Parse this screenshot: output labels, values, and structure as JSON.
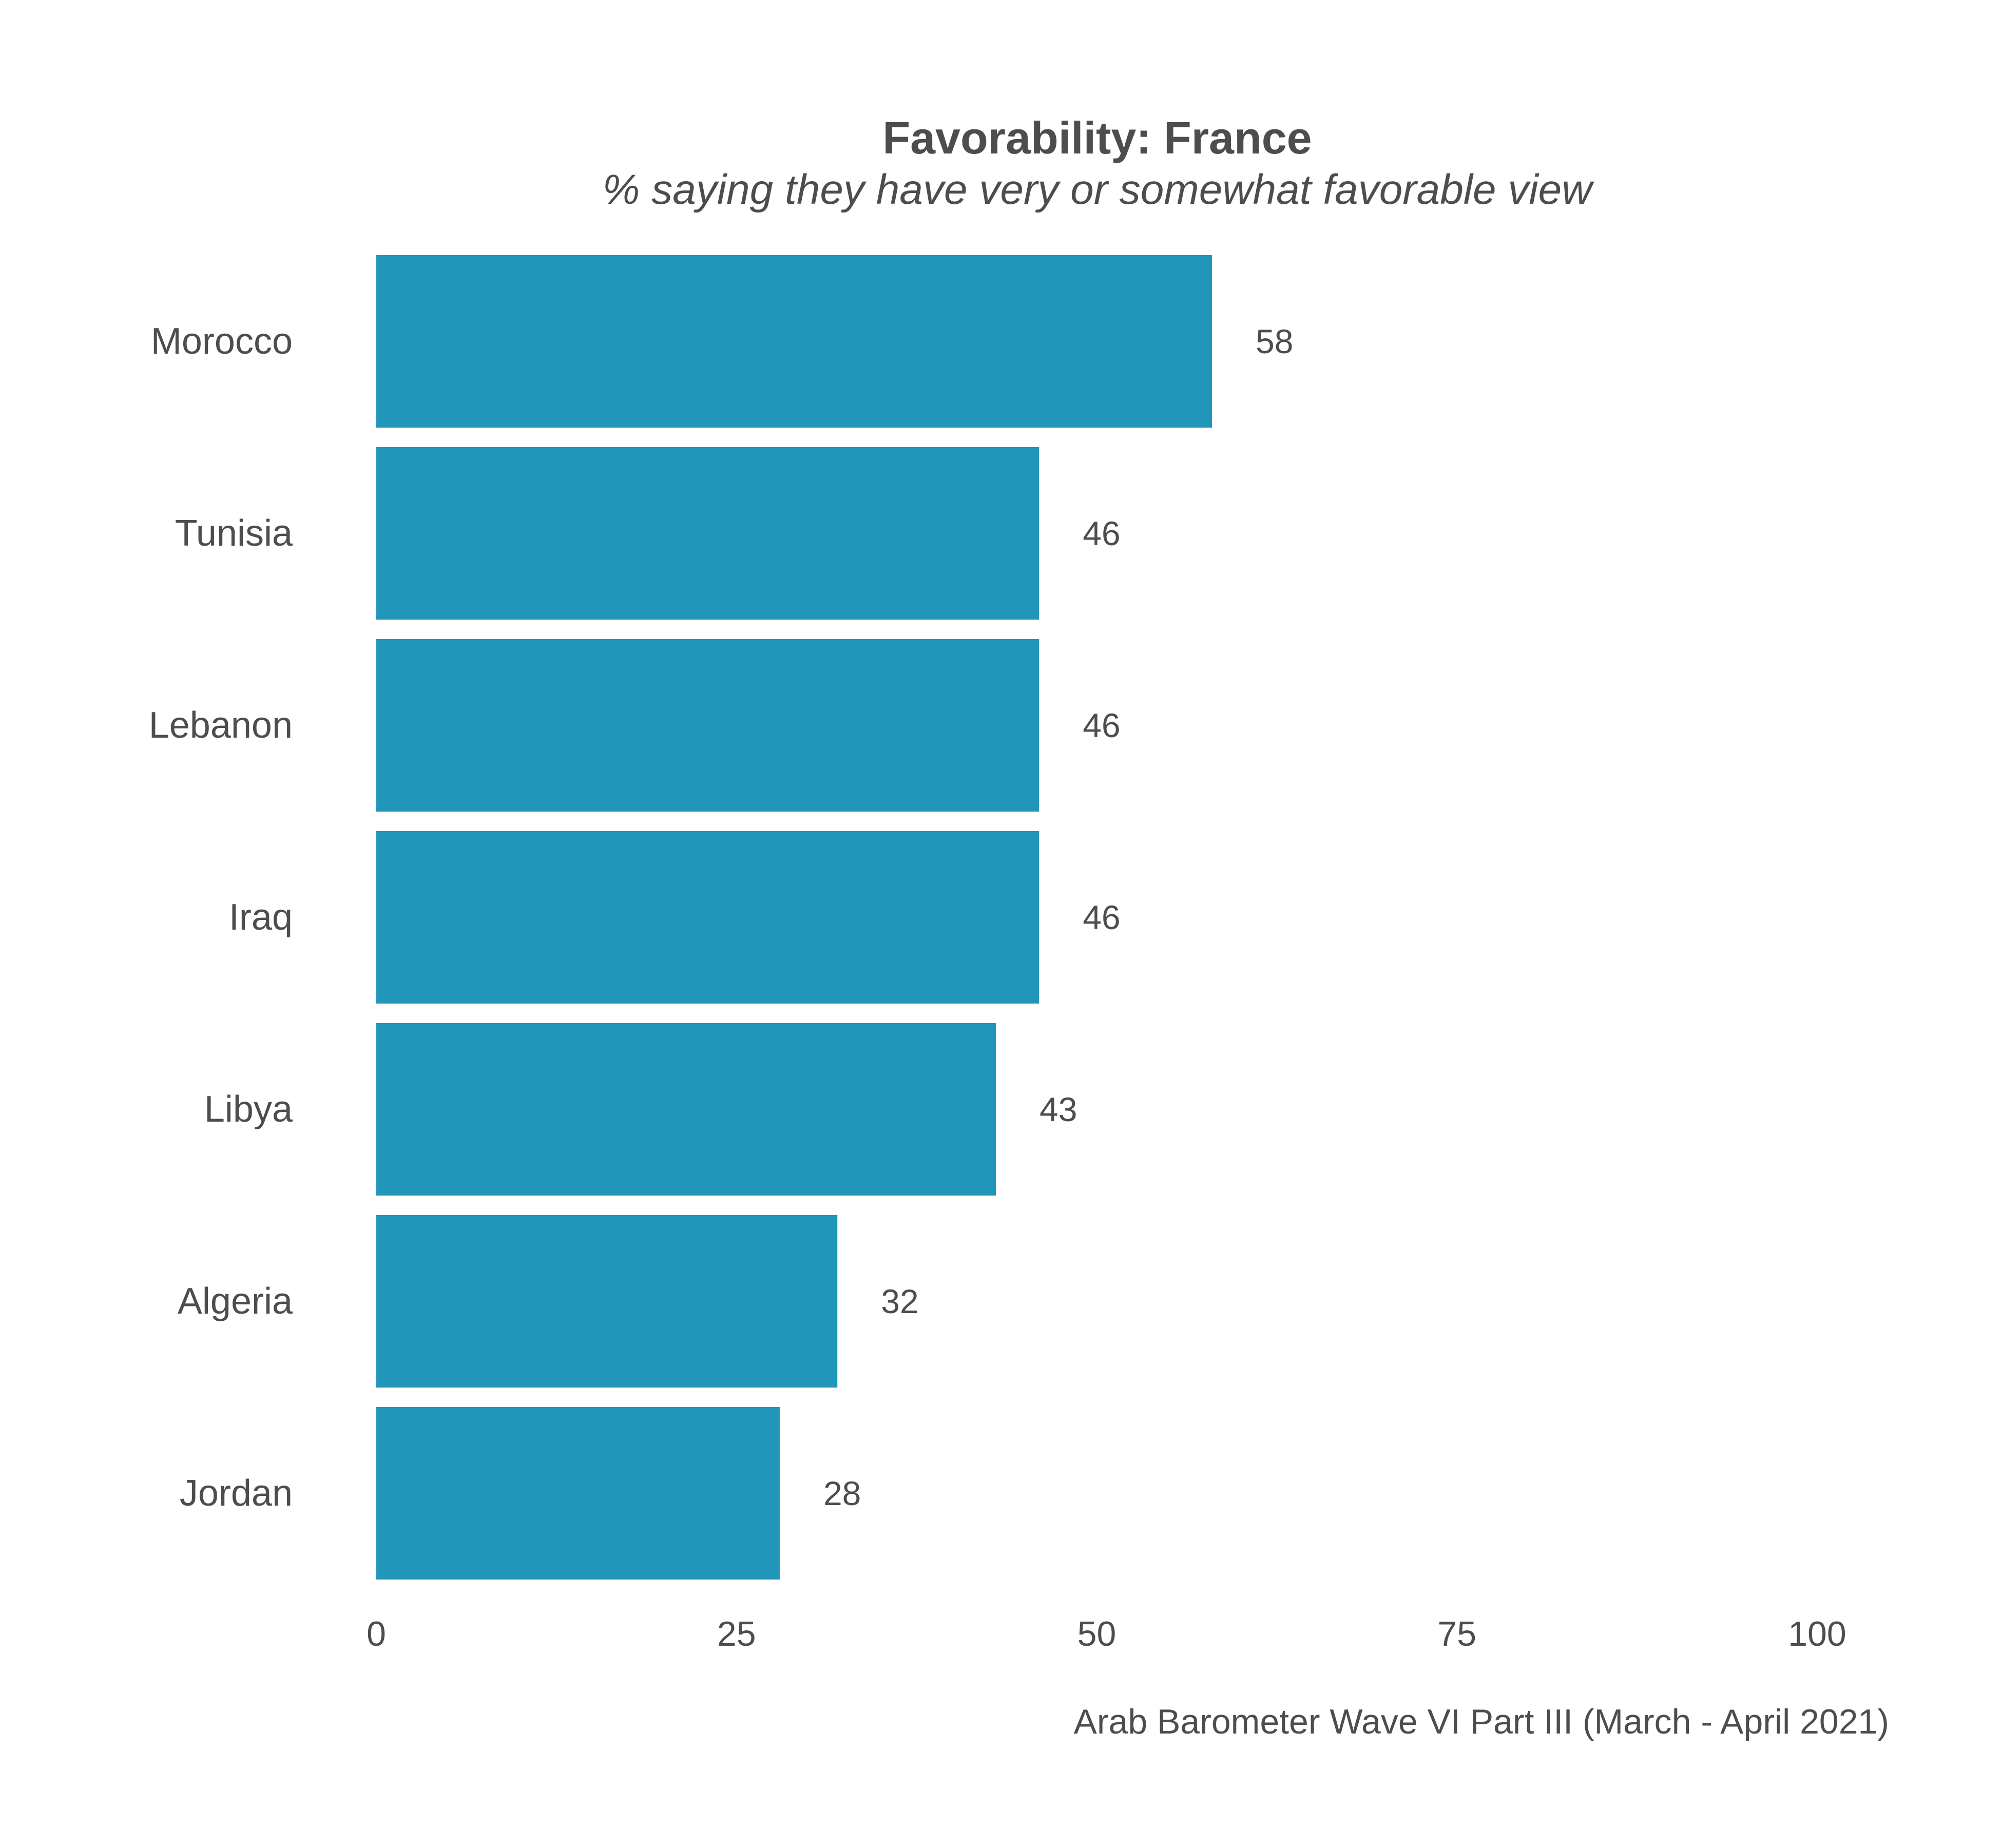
{
  "chart_data": {
    "type": "bar",
    "orientation": "horizontal",
    "title": "Favorability: France",
    "subtitle": "% saying they have very or somewhat favorable view",
    "caption": "Arab Barometer Wave VI Part III (March - April 2021)",
    "categories": [
      "Morocco",
      "Tunisia",
      "Lebanon",
      "Iraq",
      "Libya",
      "Algeria",
      "Jordan"
    ],
    "values": [
      58,
      46,
      46,
      46,
      43,
      32,
      28
    ],
    "xlim": [
      0,
      100
    ],
    "xticks": [
      "0",
      "25",
      "50",
      "75",
      "100"
    ],
    "grid": false,
    "legend": "none",
    "bar_color": "#2196bb"
  }
}
